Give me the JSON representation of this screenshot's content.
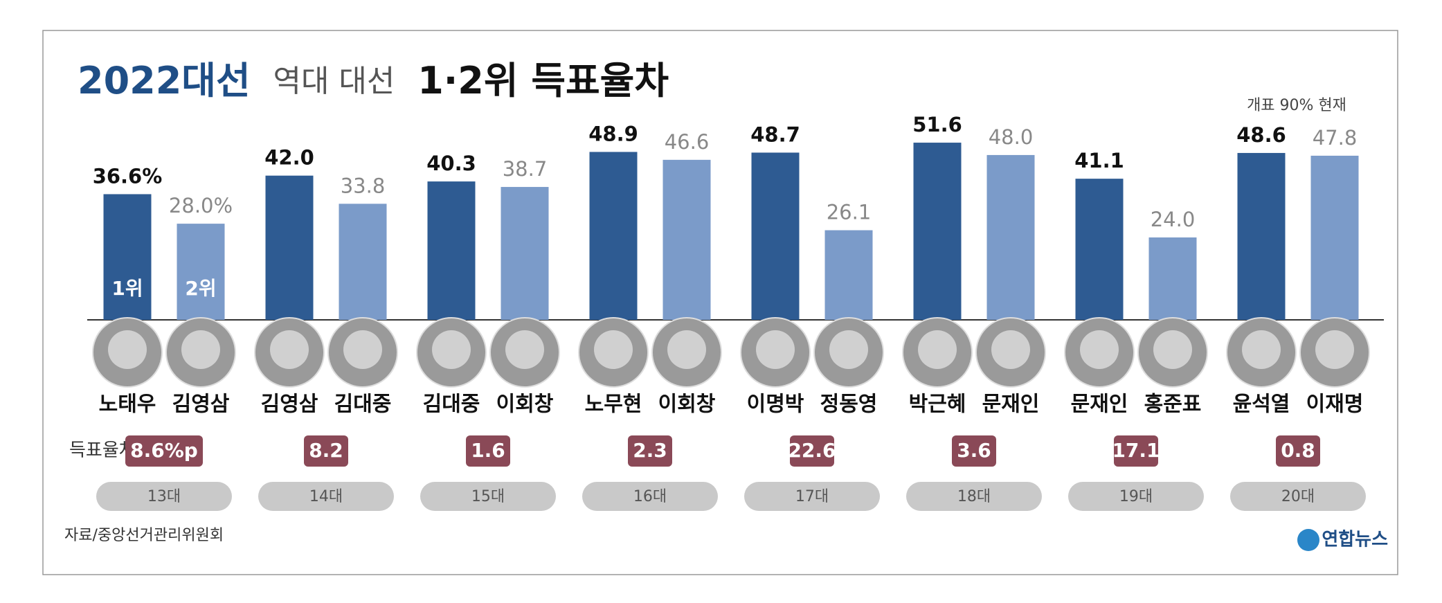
{
  "chart_data": {
    "type": "bar",
    "title": {
      "main": "2022대선",
      "sub": "역대 대선",
      "emphasis": "1·2위 득표율차"
    },
    "annotation": "개표 90% 현재",
    "categories": [
      "13대",
      "14대",
      "15대",
      "16대",
      "17대",
      "18대",
      "19대",
      "20대"
    ],
    "series": [
      {
        "name": "1위",
        "color": "#2e5b92",
        "candidates": [
          "노태우",
          "김영삼",
          "김대중",
          "노무현",
          "이명박",
          "박근혜",
          "문재인",
          "윤석열"
        ],
        "values": [
          36.6,
          42.0,
          40.3,
          48.9,
          48.7,
          51.6,
          41.1,
          48.6
        ],
        "value_labels": [
          "36.6%",
          "42.0",
          "40.3",
          "48.9",
          "48.7",
          "51.6",
          "41.1",
          "48.6"
        ]
      },
      {
        "name": "2위",
        "color": "#7b9bc9",
        "candidates": [
          "김영삼",
          "김대중",
          "이회창",
          "이회창",
          "정동영",
          "문재인",
          "홍준표",
          "이재명"
        ],
        "values": [
          28.0,
          33.8,
          38.7,
          46.6,
          26.1,
          48.0,
          24.0,
          47.8
        ],
        "value_labels": [
          "28.0%",
          "33.8",
          "38.7",
          "46.6",
          "26.1",
          "48.0",
          "24.0",
          "47.8"
        ]
      }
    ],
    "difference": {
      "label": "득표율차",
      "color": "#8a4957",
      "values": [
        8.6,
        8.2,
        1.6,
        2.3,
        22.6,
        3.6,
        17.1,
        0.8
      ],
      "value_labels": [
        "8.6%p",
        "8.2",
        "1.6",
        "2.3",
        "22.6",
        "3.6",
        "17.1",
        "0.8"
      ]
    },
    "source": "자료/중앙선거관리위원회",
    "logo": "연합뉴스"
  }
}
